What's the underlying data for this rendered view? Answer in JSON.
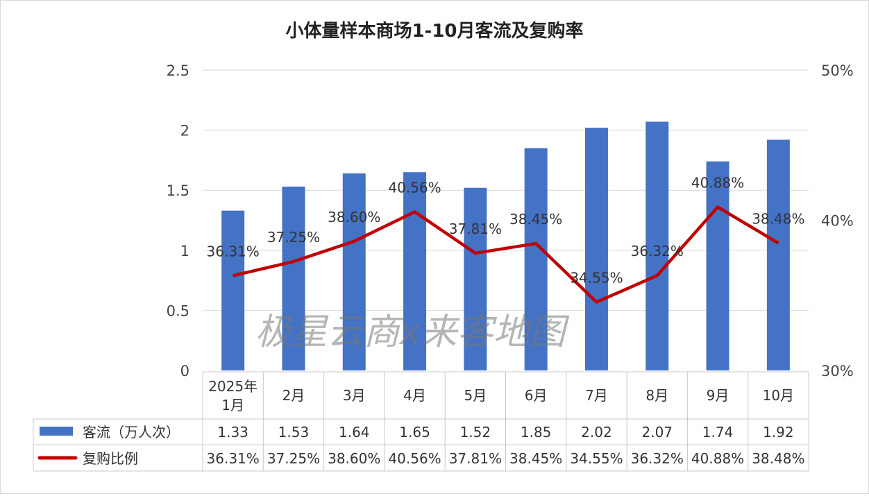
{
  "chart_data": {
    "type": "bar+line",
    "title": "小体量样本商场1-10月客流及复购率",
    "categories": [
      "2025年\n1月",
      "2月",
      "3月",
      "4月",
      "5月",
      "6月",
      "7月",
      "8月",
      "9月",
      "10月"
    ],
    "series": [
      {
        "name": "客流（万人次）",
        "type": "bar",
        "axis": "left",
        "color": "#4472C4",
        "values": [
          1.33,
          1.53,
          1.64,
          1.65,
          1.52,
          1.85,
          2.02,
          2.07,
          1.74,
          1.92
        ],
        "table_labels": [
          "1.33",
          "1.53",
          "1.64",
          "1.65",
          "1.52",
          "1.85",
          "2.02",
          "2.07",
          "1.74",
          "1.92"
        ]
      },
      {
        "name": "复购比例",
        "type": "line",
        "axis": "right",
        "color": "#C00000",
        "values": [
          36.31,
          37.25,
          38.6,
          40.56,
          37.81,
          38.45,
          34.55,
          36.32,
          40.88,
          38.48
        ],
        "labels": [
          "36.31%",
          "37.25%",
          "38.60%",
          "40.56%",
          "37.81%",
          "38.45%",
          "34.55%",
          "36.32%",
          "40.88%",
          "38.48%"
        ]
      }
    ],
    "left_axis": {
      "ylim": [
        0,
        2.5
      ],
      "ticks": [
        "0",
        "0.5",
        "1",
        "1.5",
        "2",
        "2.5"
      ]
    },
    "right_axis": {
      "ylim": [
        30,
        50
      ],
      "ticks": [
        "30%",
        "40%",
        "50%"
      ]
    },
    "grid": true,
    "legend": "data-table-bottom",
    "watermark": "极星云商x来客地图"
  }
}
